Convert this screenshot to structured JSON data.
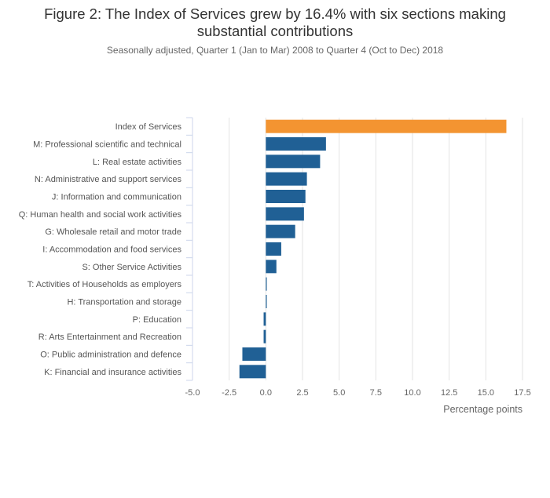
{
  "title_line1": "Figure 2: The Index of Services grew by 16.4% with six sections making",
  "title_line2": "substantial contributions",
  "subtitle": "Seasonally adjusted, Quarter 1 (Jan to Mar) 2008 to Quarter 4 (Oct to Dec) 2018",
  "colors": {
    "highlight": "#f39431",
    "bar": "#206095",
    "grid": "#e3e3e3",
    "axis": "#ccd6eb"
  },
  "chart_data": {
    "type": "bar",
    "orientation": "horizontal",
    "categories": [
      "Index of Services",
      "M: Professional scientific and technical",
      "L: Real estate activities",
      "N: Administrative and support services",
      "J: Information and communication",
      "Q: Human health and social work activities",
      "G: Wholesale retail and motor trade",
      "I: Accommodation and food services",
      "S: Other Service Activities",
      "T: Activities of Households as employers",
      "H: Transportation and storage",
      "P: Education",
      "R: Arts Entertainment and Recreation",
      "O: Public administration and defence",
      "K: Financial and insurance activities"
    ],
    "values": [
      16.4,
      4.1,
      3.7,
      2.8,
      2.7,
      2.6,
      2.0,
      1.05,
      0.72,
      0.05,
      0.05,
      -0.15,
      -0.15,
      -1.6,
      -1.8
    ],
    "highlight_index": 0,
    "xlabel": "Percentage points",
    "ylabel": "",
    "xlim": [
      -5,
      17.5
    ],
    "xticks": [
      -5,
      -2.5,
      0,
      2.5,
      5,
      7.5,
      10,
      12.5,
      15,
      17.5
    ],
    "xtick_labels": [
      "-5.0",
      "-2.5",
      "0.0",
      "2.5",
      "5.0",
      "7.5",
      "10.0",
      "12.5",
      "15.0",
      "17.5"
    ],
    "grid": true,
    "legend": false
  }
}
